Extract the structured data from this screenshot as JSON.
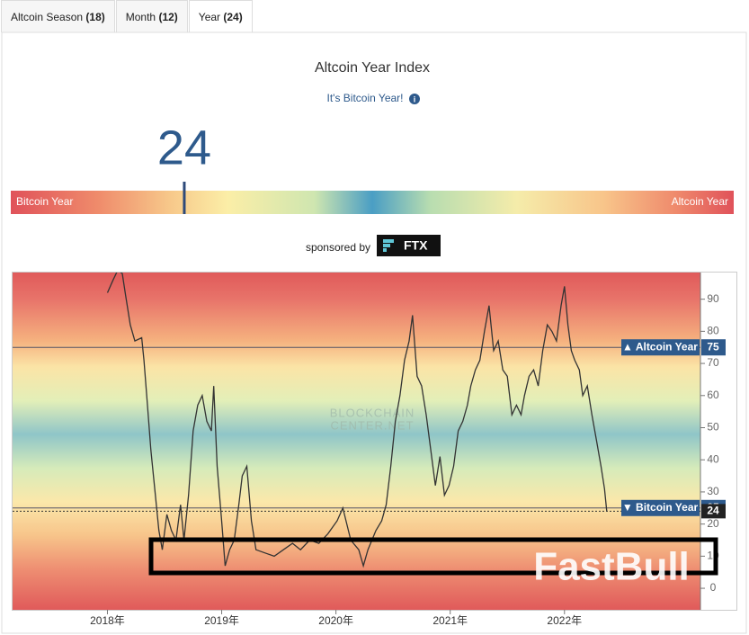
{
  "tabs": [
    {
      "label": "Altcoin Season",
      "count": "(18)"
    },
    {
      "label": "Month",
      "count": "(12)"
    },
    {
      "label": "Year",
      "count": "(24)"
    }
  ],
  "active_tab": 2,
  "header": {
    "title": "Altcoin Year Index",
    "subtitle": "It's Bitcoin Year!"
  },
  "index": {
    "value": 24,
    "range": [
      0,
      100
    ],
    "left_label": "Bitcoin Year",
    "right_label": "Altcoin Year"
  },
  "sponsor": {
    "prefix": "sponsored by",
    "name": "FTX"
  },
  "watermark": [
    "BLOCKCHAIN",
    "CENTER.NET"
  ],
  "overlay": "FastBull",
  "chart_data": {
    "type": "line",
    "color": "#333333",
    "x": [
      2018.0,
      2018.05,
      2018.09,
      2018.13,
      2018.16,
      2018.2,
      2018.24,
      2018.3,
      2018.32,
      2018.35,
      2018.38,
      2018.42,
      2018.45,
      2018.48,
      2018.52,
      2018.56,
      2018.6,
      2018.64,
      2018.67,
      2018.71,
      2018.75,
      2018.79,
      2018.83,
      2018.87,
      2018.91,
      2018.93,
      2018.96,
      2019.0,
      2019.03,
      2019.07,
      2019.11,
      2019.15,
      2019.18,
      2019.22,
      2019.26,
      2019.3,
      2019.38,
      2019.46,
      2019.54,
      2019.62,
      2019.69,
      2019.77,
      2019.85,
      2019.93,
      2020.01,
      2020.06,
      2020.13,
      2020.2,
      2020.24,
      2020.28,
      2020.35,
      2020.4,
      2020.44,
      2020.48,
      2020.52,
      2020.56,
      2020.6,
      2020.64,
      2020.67,
      2020.71,
      2020.75,
      2020.79,
      2020.83,
      2020.87,
      2020.91,
      2020.95,
      2020.99,
      2021.03,
      2021.07,
      2021.11,
      2021.15,
      2021.18,
      2021.22,
      2021.26,
      2021.3,
      2021.34,
      2021.38,
      2021.42,
      2021.46,
      2021.5,
      2021.54,
      2021.58,
      2021.62,
      2021.65,
      2021.69,
      2021.73,
      2021.77,
      2021.81,
      2021.85,
      2021.89,
      2021.93,
      2021.97,
      2022.0,
      2022.03,
      2022.06,
      2022.09,
      2022.13,
      2022.16,
      2022.2,
      2022.24,
      2022.28,
      2022.32,
      2022.35,
      2022.37
    ],
    "values": [
      92,
      96,
      99,
      98,
      91,
      82,
      77,
      78,
      71,
      57,
      43,
      29,
      18,
      12,
      23,
      18,
      15,
      26,
      15,
      29,
      49,
      57,
      60,
      52,
      49,
      63,
      38,
      21,
      7,
      12,
      15,
      26,
      35,
      38,
      21,
      12,
      11,
      10,
      12,
      14,
      12,
      15,
      14,
      17,
      21,
      25,
      15,
      12,
      7,
      12,
      18,
      21,
      26,
      38,
      52,
      60,
      71,
      77,
      85,
      66,
      63,
      54,
      43,
      32,
      41,
      29,
      32,
      38,
      49,
      52,
      57,
      63,
      68,
      71,
      80,
      88,
      74,
      77,
      68,
      66,
      54,
      57,
      54,
      60,
      66,
      68,
      63,
      74,
      82,
      80,
      77,
      88,
      94,
      82,
      74,
      71,
      68,
      60,
      63,
      54,
      46,
      38,
      31,
      24
    ],
    "xlim": [
      2017.17,
      2023.19
    ],
    "xticks": [
      {
        "value": 2018,
        "label": "2018年"
      },
      {
        "value": 2019,
        "label": "2019年"
      },
      {
        "value": 2020,
        "label": "2020年"
      },
      {
        "value": 2021,
        "label": "2021年"
      },
      {
        "value": 2022,
        "label": "2022年"
      }
    ],
    "ylim": [
      -6.7,
      98.3
    ],
    "yticks": [
      0,
      10,
      20,
      30,
      40,
      50,
      60,
      70,
      80,
      90
    ],
    "thresholds": [
      {
        "label": "▲ Altcoin Year",
        "value": 75
      },
      {
        "label": "▼ Bitcoin Year",
        "value": 25
      }
    ],
    "current": 24
  }
}
